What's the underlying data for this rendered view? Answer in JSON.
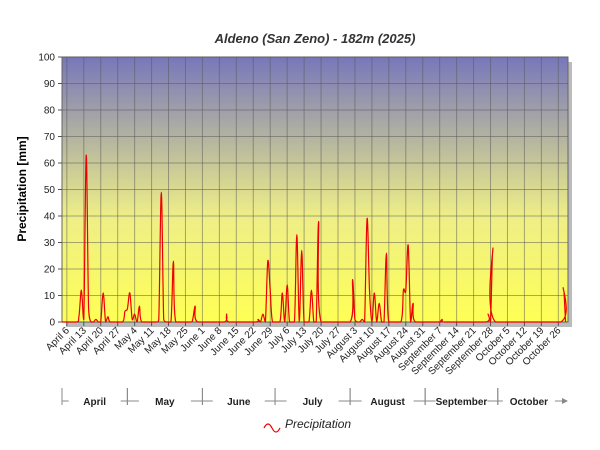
{
  "chart_data": {
    "type": "line",
    "title": "Aldeno (San Zeno) - 182m (2025)",
    "ylabel": "Precipitation [mm]",
    "xlabel": "",
    "ylim": [
      0,
      100
    ],
    "y_ticks": [
      0,
      10,
      20,
      30,
      40,
      50,
      60,
      70,
      80,
      90,
      100
    ],
    "x_range": [
      "2025-04-04",
      "2025-10-30"
    ],
    "x_tick_labels": [
      {
        "date": "2025-04-06",
        "label": "April 6"
      },
      {
        "date": "2025-04-13",
        "label": "April 13"
      },
      {
        "date": "2025-04-20",
        "label": "April 20"
      },
      {
        "date": "2025-04-27",
        "label": "April 27"
      },
      {
        "date": "2025-05-04",
        "label": "May 4"
      },
      {
        "date": "2025-05-11",
        "label": "May 11"
      },
      {
        "date": "2025-05-18",
        "label": "May 18"
      },
      {
        "date": "2025-05-25",
        "label": "May 25"
      },
      {
        "date": "2025-06-01",
        "label": "June 1"
      },
      {
        "date": "2025-06-08",
        "label": "June 8"
      },
      {
        "date": "2025-06-15",
        "label": "June 15"
      },
      {
        "date": "2025-06-22",
        "label": "June 22"
      },
      {
        "date": "2025-06-29",
        "label": "June 29"
      },
      {
        "date": "2025-07-06",
        "label": "July 6"
      },
      {
        "date": "2025-07-13",
        "label": "July 13"
      },
      {
        "date": "2025-07-20",
        "label": "July 20"
      },
      {
        "date": "2025-07-27",
        "label": "July 27"
      },
      {
        "date": "2025-08-03",
        "label": "August 3"
      },
      {
        "date": "2025-08-10",
        "label": "August 10"
      },
      {
        "date": "2025-08-17",
        "label": "August 17"
      },
      {
        "date": "2025-08-24",
        "label": "August 24"
      },
      {
        "date": "2025-08-31",
        "label": "August 31"
      },
      {
        "date": "2025-09-07",
        "label": "September 7"
      },
      {
        "date": "2025-09-14",
        "label": "September 14"
      },
      {
        "date": "2025-09-21",
        "label": "September 21"
      },
      {
        "date": "2025-09-28",
        "label": "September 28"
      },
      {
        "date": "2025-10-05",
        "label": "October 5"
      },
      {
        "date": "2025-10-12",
        "label": "October 12"
      },
      {
        "date": "2025-10-19",
        "label": "October 19"
      },
      {
        "date": "2025-10-26",
        "label": "October 26"
      }
    ],
    "months": [
      {
        "label": "April",
        "start": "2025-04-04",
        "end": "2025-05-01"
      },
      {
        "label": "May",
        "start": "2025-05-01",
        "end": "2025-06-01"
      },
      {
        "label": "June",
        "start": "2025-06-01",
        "end": "2025-07-01"
      },
      {
        "label": "July",
        "start": "2025-07-01",
        "end": "2025-08-01"
      },
      {
        "label": "August",
        "start": "2025-08-01",
        "end": "2025-09-01"
      },
      {
        "label": "September",
        "start": "2025-09-01",
        "end": "2025-10-01"
      },
      {
        "label": "October",
        "start": "2025-10-01",
        "end": "2025-10-30"
      }
    ],
    "series": [
      {
        "name": "Precipitation",
        "color": "#ee0000",
        "points": [
          [
            "2025-04-04",
            0
          ],
          [
            "2025-04-10",
            0
          ],
          [
            "2025-04-11",
            2
          ],
          [
            "2025-04-12",
            12
          ],
          [
            "2025-04-13",
            1
          ],
          [
            "2025-04-14",
            63
          ],
          [
            "2025-04-15",
            5
          ],
          [
            "2025-04-16",
            0
          ],
          [
            "2025-04-17",
            0
          ],
          [
            "2025-04-18",
            1
          ],
          [
            "2025-04-19",
            0
          ],
          [
            "2025-04-20",
            0
          ],
          [
            "2025-04-21",
            11
          ],
          [
            "2025-04-22",
            0
          ],
          [
            "2025-04-23",
            2
          ],
          [
            "2025-04-24",
            0
          ],
          [
            "2025-04-29",
            0
          ],
          [
            "2025-04-30",
            4
          ],
          [
            "2025-05-01",
            5
          ],
          [
            "2025-05-02",
            11
          ],
          [
            "2025-05-03",
            1
          ],
          [
            "2025-05-04",
            3
          ],
          [
            "2025-05-05",
            0
          ],
          [
            "2025-05-06",
            6
          ],
          [
            "2025-05-07",
            0
          ],
          [
            "2025-05-13",
            0
          ],
          [
            "2025-05-14",
            1
          ],
          [
            "2025-05-15",
            49
          ],
          [
            "2025-05-16",
            1
          ],
          [
            "2025-05-17",
            0
          ],
          [
            "2025-05-19",
            0
          ],
          [
            "2025-05-20",
            23
          ],
          [
            "2025-05-21",
            0
          ],
          [
            "2025-05-27",
            0
          ],
          [
            "2025-05-28",
            1
          ],
          [
            "2025-05-29",
            6
          ],
          [
            "2025-05-30",
            0
          ],
          [
            "2025-06-10",
            0
          ],
          [
            "2025-06-11",
            3
          ],
          [
            "2025-06-12",
            0
          ],
          [
            "2025-06-23",
            0
          ],
          [
            "2025-06-24",
            1
          ],
          [
            "2025-06-25",
            0
          ],
          [
            "2025-06-26",
            3
          ],
          [
            "2025-06-27",
            0
          ],
          [
            "2025-06-28",
            23
          ],
          [
            "2025-06-29",
            12
          ],
          [
            "2025-06-30",
            0
          ],
          [
            "2025-07-03",
            0
          ],
          [
            "2025-07-04",
            11
          ],
          [
            "2025-07-05",
            0
          ],
          [
            "2025-07-06",
            14
          ],
          [
            "2025-07-07",
            0
          ],
          [
            "2025-07-09",
            0
          ],
          [
            "2025-07-10",
            33
          ],
          [
            "2025-07-11",
            0
          ],
          [
            "2025-07-12",
            27
          ],
          [
            "2025-07-13",
            0
          ],
          [
            "2025-07-15",
            0
          ],
          [
            "2025-07-16",
            12
          ],
          [
            "2025-07-17",
            0
          ],
          [
            "2025-07-18",
            0
          ],
          [
            "2025-07-19",
            38
          ],
          [
            "2025-07-20",
            0
          ],
          [
            "2025-08-01",
            0
          ],
          [
            "2025-08-02",
            16
          ],
          [
            "2025-08-03",
            1
          ],
          [
            "2025-08-04",
            0
          ],
          [
            "2025-08-05",
            0
          ],
          [
            "2025-08-06",
            1
          ],
          [
            "2025-08-07",
            0
          ],
          [
            "2025-08-08",
            39
          ],
          [
            "2025-08-09",
            12
          ],
          [
            "2025-08-10",
            0
          ],
          [
            "2025-08-11",
            11
          ],
          [
            "2025-08-12",
            0
          ],
          [
            "2025-08-13",
            7
          ],
          [
            "2025-08-14",
            0
          ],
          [
            "2025-08-15",
            0
          ],
          [
            "2025-08-16",
            26
          ],
          [
            "2025-08-17",
            0
          ],
          [
            "2025-08-22",
            0
          ],
          [
            "2025-08-23",
            12
          ],
          [
            "2025-08-24",
            12
          ],
          [
            "2025-08-25",
            29
          ],
          [
            "2025-08-26",
            0
          ],
          [
            "2025-08-27",
            7
          ],
          [
            "2025-08-28",
            0
          ],
          [
            "2025-09-07",
            0
          ],
          [
            "2025-09-08",
            1
          ],
          [
            "2025-09-09",
            0
          ],
          [
            "2025-09-26",
            0
          ],
          [
            "2025-09-27",
            3
          ],
          [
            "2025-09-28",
            0
          ],
          [
            "2025-09-29",
            28
          ],
          [
            "2025-09-30",
            0
          ],
          [
            "2025-10-27",
            0
          ],
          [
            "2025-10-28",
            13
          ],
          [
            "2025-10-29",
            0
          ]
        ]
      }
    ],
    "legend": {
      "placement": "bottom",
      "label": "Precipitation"
    },
    "grid": true,
    "background_gradient": [
      "#7777bb",
      "#eeee88",
      "#ffff55"
    ]
  }
}
